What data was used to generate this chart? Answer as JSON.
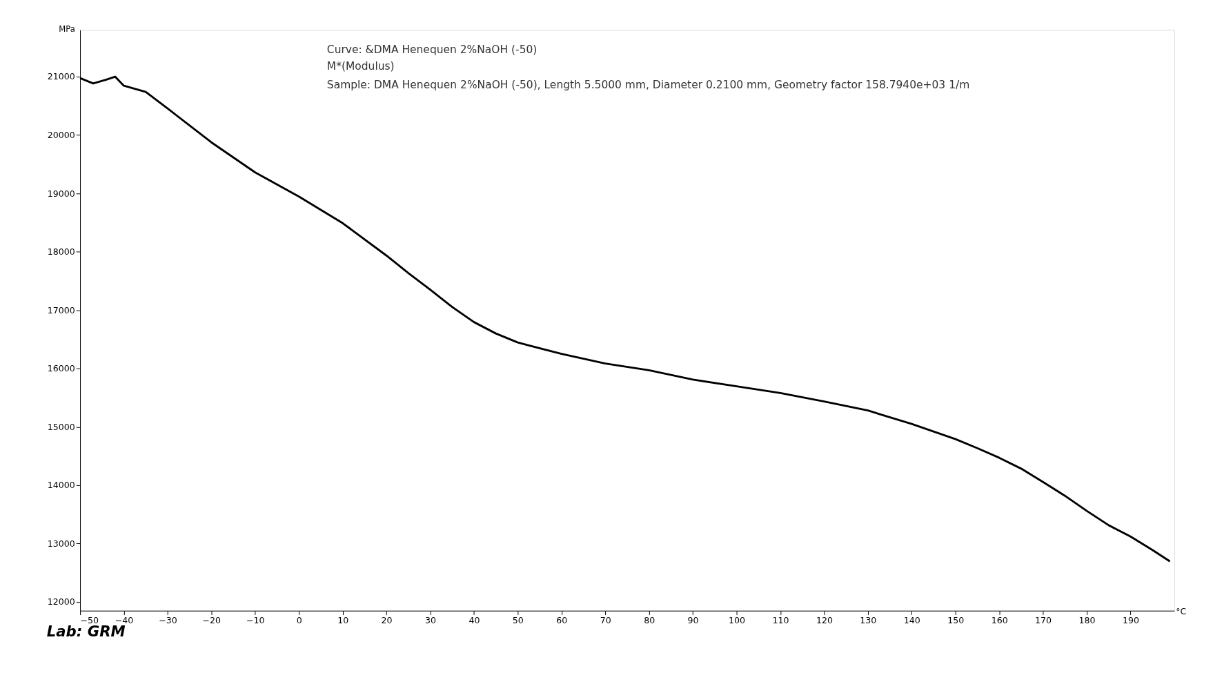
{
  "chart_data": {
    "type": "line",
    "xlabel": "°C",
    "ylabel": "MPa",
    "annotations": [
      "Curve: &DMA Henequen 2%NaOH (-50)",
      "M*(Modulus)",
      "Sample: DMA Henequen 2%NaOH (-50), Length 5.5000 mm, Diameter 0.2100 mm, Geometry factor 158.7940e+03 1/m",
      "Lab: GRM"
    ],
    "series": [
      {
        "color": "#000000",
        "x": [
          -50,
          -47,
          -44,
          -42,
          -40,
          -35,
          -30,
          -20,
          -10,
          0,
          10,
          20,
          25,
          30,
          35,
          40,
          45,
          50,
          60,
          70,
          80,
          90,
          100,
          110,
          120,
          130,
          140,
          145,
          150,
          155,
          160,
          165,
          170,
          175,
          180,
          185,
          190,
          195,
          199
        ],
        "values": [
          20975,
          20885,
          20950,
          21000,
          20845,
          20740,
          20455,
          19875,
          19360,
          18945,
          18490,
          17935,
          17635,
          17350,
          17055,
          16795,
          16600,
          16445,
          16250,
          16085,
          15970,
          15810,
          15695,
          15580,
          15435,
          15280,
          15050,
          14920,
          14790,
          14635,
          14470,
          14285,
          14055,
          13820,
          13560,
          13315,
          13120,
          12890,
          12695
        ]
      }
    ],
    "xlim": [
      -50,
      200
    ],
    "xticks": [
      -50,
      -40,
      -30,
      -20,
      -10,
      0,
      10,
      20,
      30,
      40,
      50,
      60,
      70,
      80,
      90,
      100,
      110,
      120,
      130,
      140,
      150,
      160,
      170,
      180,
      190
    ],
    "ylim": [
      11850,
      21800
    ],
    "yticks": [
      12000,
      13000,
      14000,
      15000,
      16000,
      17000,
      18000,
      19000,
      20000,
      21000
    ],
    "grid": false,
    "marker": "none",
    "line_style": "solid"
  }
}
